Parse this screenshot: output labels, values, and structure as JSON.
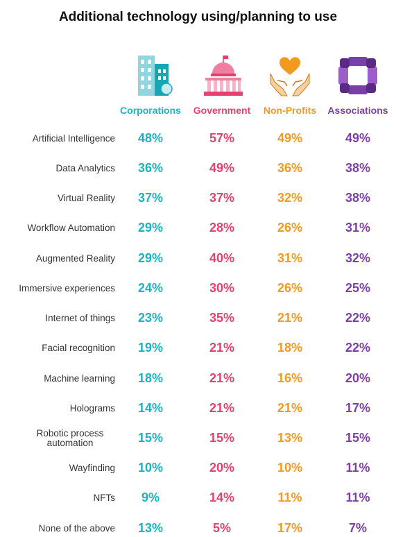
{
  "title": "Additional technology using/planning to use",
  "colors": {
    "corporations": "#17b5c3",
    "government": "#e5416f",
    "nonprofits": "#f29a1f",
    "associations": "#7b3fa8"
  },
  "chart_data": {
    "type": "table",
    "title": "Additional technology using/planning to use",
    "columns": [
      {
        "name": "Corporations",
        "icon": "office-building-icon"
      },
      {
        "name": "Government",
        "icon": "capitol-building-icon"
      },
      {
        "name": "Non-Profits",
        "icon": "hands-holding-heart-icon"
      },
      {
        "name": "Associations",
        "icon": "linked-hands-icon"
      }
    ],
    "rows": [
      {
        "label": "Artificial Intelligence",
        "values": [
          "48%",
          "57%",
          "49%",
          "49%"
        ]
      },
      {
        "label": "Data Analytics",
        "values": [
          "36%",
          "49%",
          "36%",
          "38%"
        ]
      },
      {
        "label": "Virtual Reality",
        "values": [
          "37%",
          "37%",
          "32%",
          "38%"
        ]
      },
      {
        "label": "Workflow Automation",
        "values": [
          "29%",
          "28%",
          "26%",
          "31%"
        ]
      },
      {
        "label": "Augmented Reality",
        "values": [
          "29%",
          "40%",
          "31%",
          "32%"
        ]
      },
      {
        "label": "Immersive experiences",
        "values": [
          "24%",
          "30%",
          "26%",
          "25%"
        ]
      },
      {
        "label": "Internet of things",
        "values": [
          "23%",
          "35%",
          "21%",
          "22%"
        ]
      },
      {
        "label": "Facial recognition",
        "values": [
          "19%",
          "21%",
          "18%",
          "22%"
        ]
      },
      {
        "label": "Machine learning",
        "values": [
          "18%",
          "21%",
          "16%",
          "20%"
        ]
      },
      {
        "label": "Holograms",
        "values": [
          "14%",
          "21%",
          "21%",
          "17%"
        ]
      },
      {
        "label": "Robotic process automation",
        "values": [
          "15%",
          "15%",
          "13%",
          "15%"
        ]
      },
      {
        "label": "Wayfinding",
        "values": [
          "10%",
          "20%",
          "10%",
          "11%"
        ]
      },
      {
        "label": "NFTs",
        "values": [
          "9%",
          "14%",
          "11%",
          "11%"
        ]
      },
      {
        "label": "None of the above",
        "values": [
          "13%",
          "5%",
          "17%",
          "7%"
        ]
      }
    ]
  }
}
